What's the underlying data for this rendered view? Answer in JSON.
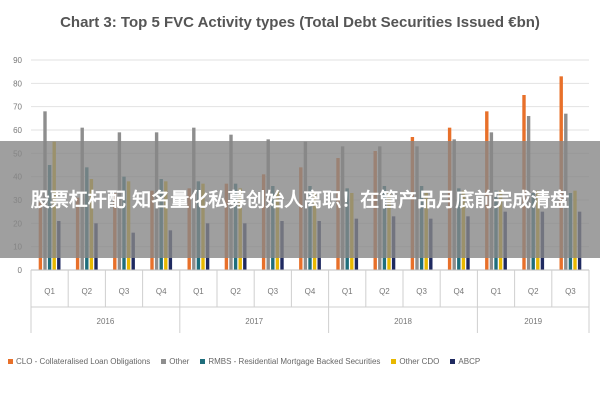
{
  "chart_data": {
    "type": "bar",
    "title": "Chart 3: Top 5 FVC Activity types (Total Debt Securities Issued €bn)",
    "xlabel": "",
    "ylabel": "",
    "ylim": [
      0,
      90
    ],
    "yticks": [
      0,
      10,
      20,
      30,
      40,
      50,
      60,
      70,
      80,
      90
    ],
    "grid": true,
    "legend_position": "bottom",
    "categories": [
      "Q1",
      "Q2",
      "Q3",
      "Q4",
      "Q1",
      "Q2",
      "Q3",
      "Q4",
      "Q1",
      "Q2",
      "Q3",
      "Q4",
      "Q1",
      "Q2",
      "Q3"
    ],
    "groups": [
      {
        "label": "2016",
        "count": 4
      },
      {
        "label": "2017",
        "count": 4
      },
      {
        "label": "2018",
        "count": 4
      },
      {
        "label": "2019",
        "count": 3
      }
    ],
    "series": [
      {
        "name": "CLO - Collateralised Loan Obligations",
        "color": "#e8702a",
        "values": [
          29,
          31,
          33,
          34,
          35,
          37,
          41,
          44,
          48,
          51,
          57,
          61,
          68,
          75,
          83
        ]
      },
      {
        "name": "Other",
        "color": "#8e8e8e",
        "values": [
          68,
          61,
          59,
          59,
          61,
          58,
          56,
          55,
          53,
          53,
          53,
          56,
          59,
          66,
          67
        ]
      },
      {
        "name": "RMBS - Residential Mortgage Backed Securities",
        "color": "#1f6e7c",
        "values": [
          45,
          44,
          40,
          39,
          38,
          37,
          36,
          36,
          35,
          36,
          36,
          35,
          34,
          33,
          33
        ]
      },
      {
        "name": "Other CDO",
        "color": "#e8b800",
        "values": [
          55,
          39,
          38,
          38,
          37,
          35,
          34,
          33,
          33,
          33,
          33,
          34,
          34,
          34,
          34
        ]
      },
      {
        "name": "ABCP",
        "color": "#1f2a60",
        "values": [
          21,
          20,
          16,
          17,
          20,
          20,
          21,
          21,
          22,
          23,
          22,
          23,
          25,
          25,
          25
        ]
      }
    ]
  },
  "banner": {
    "text": "股票杠杆配 知名量化私募创始人离职！在管产品月底前完成清盘"
  }
}
